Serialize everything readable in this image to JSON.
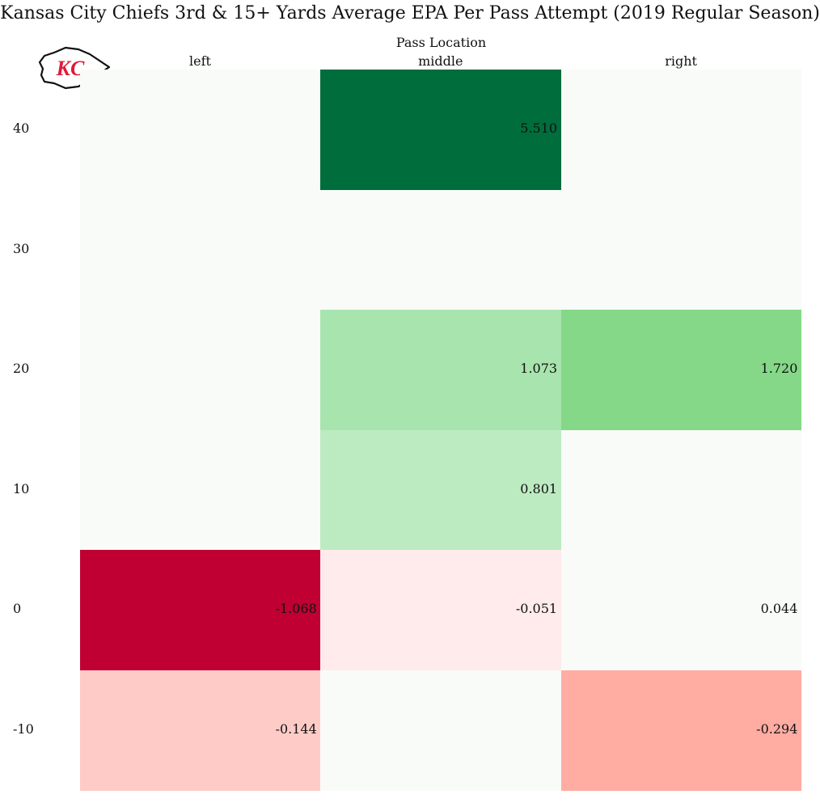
{
  "chart_data": {
    "type": "heatmap",
    "title": "Kansas City Chiefs 3rd & 15+ Yards Average EPA Per Pass Attempt (2019 Regular Season)",
    "xlabel": "Pass Location",
    "ylabel": "",
    "x_categories": [
      "left",
      "middle",
      "right"
    ],
    "y_categories": [
      "40",
      "30",
      "20",
      "10",
      "0",
      "-10"
    ],
    "cells": [
      {
        "x": "middle",
        "y": "40",
        "value": 5.51,
        "label": "5.510",
        "color": "#006d3c"
      },
      {
        "x": "middle",
        "y": "20",
        "value": 1.073,
        "label": "1.073",
        "color": "#a8e4ad"
      },
      {
        "x": "right",
        "y": "20",
        "value": 1.72,
        "label": "1.720",
        "color": "#84d887"
      },
      {
        "x": "middle",
        "y": "10",
        "value": 0.801,
        "label": "0.801",
        "color": "#bdebc1"
      },
      {
        "x": "left",
        "y": "0",
        "value": -1.068,
        "label": "-1.068",
        "color": "#c00033"
      },
      {
        "x": "middle",
        "y": "0",
        "value": -0.051,
        "label": "-0.051",
        "color": "#ffebeb"
      },
      {
        "x": "right",
        "y": "0",
        "value": 0.044,
        "label": "0.044",
        "color": "#f9fbf9"
      },
      {
        "x": "left",
        "y": "-10",
        "value": -0.144,
        "label": "-0.144",
        "color": "#ffcbc7"
      },
      {
        "x": "right",
        "y": "-10",
        "value": -0.294,
        "label": "-0.294",
        "color": "#ffaca2"
      }
    ],
    "empty_color": "#f9fbf9",
    "grid": false,
    "legend": "none"
  },
  "logo": {
    "name": "Kansas City Chiefs arrowhead logo",
    "text": "KC",
    "color": "#e31837"
  }
}
